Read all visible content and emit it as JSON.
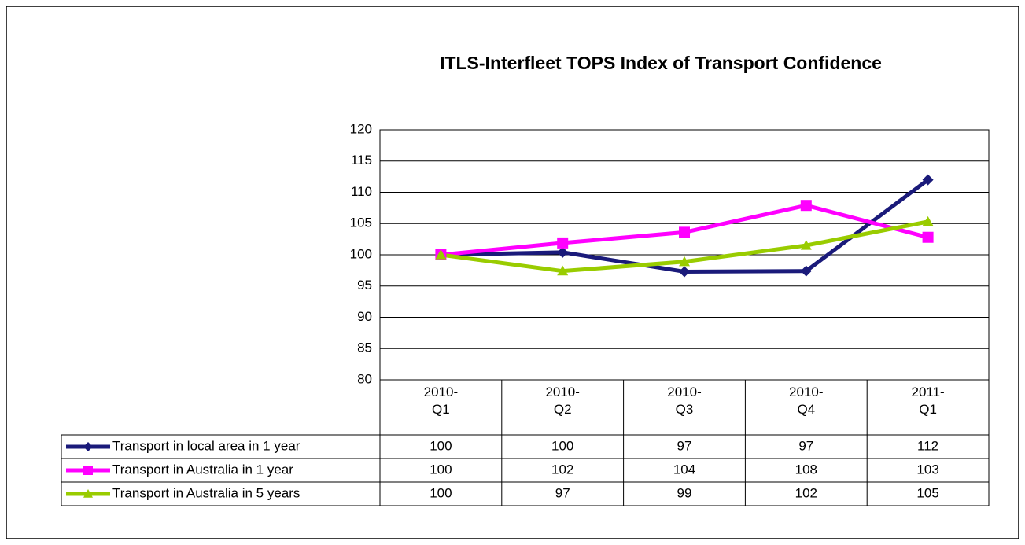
{
  "chart_data": {
    "type": "line",
    "title": "ITLS-Interfleet TOPS Index of Transport Confidence",
    "categories": [
      "2010-Q1",
      "2010-Q2",
      "2010-Q3",
      "2010-Q4",
      "2011-Q1"
    ],
    "series": [
      {
        "name": "Transport in local area in 1 year",
        "color": "#1a1a7a",
        "marker": "diamond",
        "values": [
          100,
          100.4,
          97.3,
          97.4,
          112
        ],
        "value_labels": [
          "100",
          "100",
          "97",
          "97",
          "112"
        ]
      },
      {
        "name": "Transport in Australia in 1 year",
        "color": "#ff00ff",
        "marker": "square",
        "values": [
          100,
          101.9,
          103.6,
          107.9,
          102.8
        ],
        "value_labels": [
          "100",
          "102",
          "104",
          "108",
          "103"
        ]
      },
      {
        "name": "Transport in Australia in 5 years",
        "color": "#99cc00",
        "marker": "triangle",
        "values": [
          100,
          97.4,
          98.9,
          101.5,
          105.3
        ],
        "value_labels": [
          "100",
          "97",
          "99",
          "102",
          "105"
        ]
      }
    ],
    "ylim": [
      80,
      120
    ],
    "yticks": [
      80,
      85,
      90,
      95,
      100,
      105,
      110,
      115,
      120
    ],
    "grid": true
  }
}
